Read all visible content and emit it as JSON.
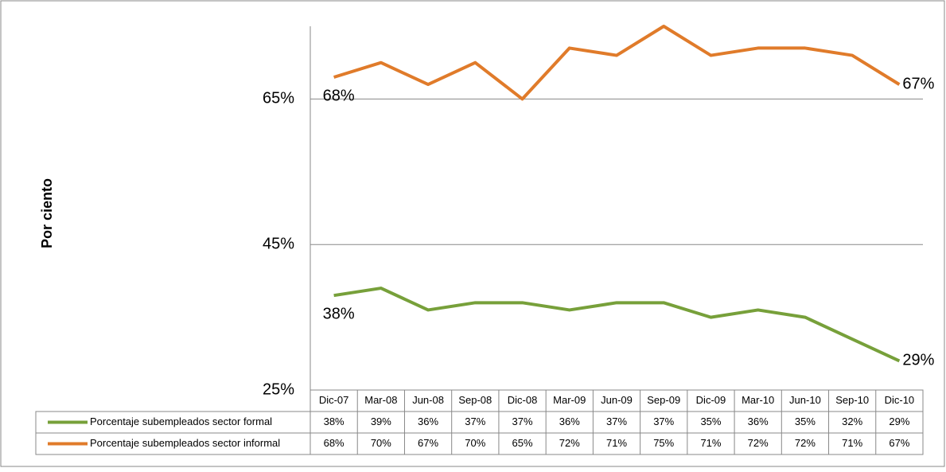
{
  "chart_data": {
    "type": "line",
    "y_label": "Por ciento",
    "categories": [
      "Dic-07",
      "Mar-08",
      "Jun-08",
      "Sep-08",
      "Dic-08",
      "Mar-09",
      "Jun-09",
      "Sep-09",
      "Dic-09",
      "Mar-10",
      "Jun-10",
      "Sep-10",
      "Dic-10"
    ],
    "series": [
      {
        "name": "Porcentaje subempleados sector formal",
        "color": "#77a03a",
        "values": [
          38,
          39,
          36,
          37,
          37,
          36,
          37,
          37,
          35,
          36,
          35,
          32,
          29
        ],
        "value_labels": [
          "38%",
          "39%",
          "36%",
          "37%",
          "37%",
          "36%",
          "37%",
          "37%",
          "35%",
          "36%",
          "35%",
          "32%",
          "29%"
        ]
      },
      {
        "name": "Porcentaje subempleados sector informal",
        "color": "#e07b2a",
        "values": [
          68,
          70,
          67,
          70,
          65,
          72,
          71,
          75,
          71,
          72,
          72,
          71,
          67
        ],
        "value_labels": [
          "68%",
          "70%",
          "67%",
          "70%",
          "65%",
          "72%",
          "71%",
          "75%",
          "71%",
          "72%",
          "72%",
          "71%",
          "67%"
        ]
      }
    ],
    "ylim": [
      25,
      75
    ],
    "yticks": [
      {
        "value": 25,
        "label": "25%"
      },
      {
        "value": 45,
        "label": "45%"
      },
      {
        "value": 65,
        "label": "65%"
      }
    ],
    "grid": true
  }
}
